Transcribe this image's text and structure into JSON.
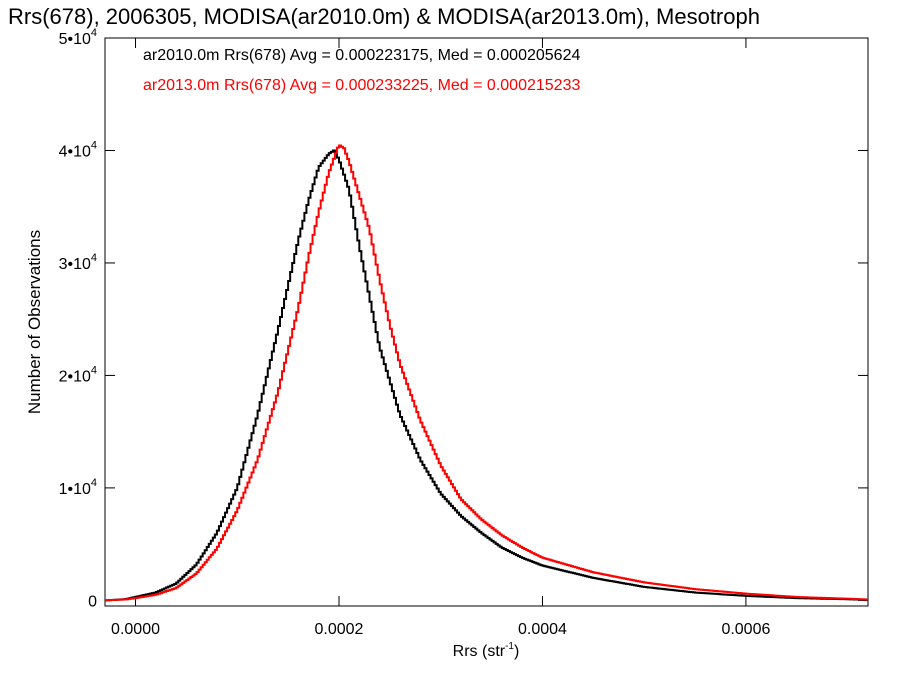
{
  "chart_data": {
    "type": "line",
    "title": "Rrs(678), 2006305, MODISA(ar2010.0m) & MODISA(ar2013.0m), Mesotroph",
    "xlabel": "Rrs (str",
    "xlabel_sup": "-1",
    "xlabel_end": ")",
    "ylabel": "Number of Observations",
    "xlim": [
      -3e-05,
      0.00072
    ],
    "ylim": [
      -500,
      50000
    ],
    "x_ticks": [
      {
        "value": 0.0,
        "label": "0.0000"
      },
      {
        "value": 0.0002,
        "label": "0.0002"
      },
      {
        "value": 0.0004,
        "label": "0.0004"
      },
      {
        "value": 0.0006,
        "label": "0.0006"
      }
    ],
    "y_ticks": [
      {
        "value": 0,
        "mant": "0",
        "exp": ""
      },
      {
        "value": 10000,
        "mant": "1•10",
        "exp": "4"
      },
      {
        "value": 20000,
        "mant": "2•10",
        "exp": "4"
      },
      {
        "value": 30000,
        "mant": "3•10",
        "exp": "4"
      },
      {
        "value": 40000,
        "mant": "4•10",
        "exp": "4"
      },
      {
        "value": 50000,
        "mant": "5•10",
        "exp": "4"
      }
    ],
    "grid": false,
    "legend_position": "top-left",
    "series": [
      {
        "name": "ar2010.0m Rrs(678) Avg = 0.000223175, Med = 0.000205624",
        "color": "#000000",
        "step": "step",
        "x": [
          -3e-05,
          -1e-05,
          0.0,
          2e-05,
          4e-05,
          6e-05,
          8e-05,
          0.0001,
          0.00012,
          0.00014,
          0.00016,
          0.00017,
          0.00018,
          0.00019,
          0.000195,
          0.0002,
          0.00021,
          0.00022,
          0.00023,
          0.00024,
          0.00026,
          0.00028,
          0.0003,
          0.00032,
          0.00034,
          0.00036,
          0.00038,
          0.0004,
          0.00045,
          0.0005,
          0.00055,
          0.0006,
          0.00065,
          0.0007,
          0.00072
        ],
        "y": [
          0,
          100,
          300,
          700,
          1500,
          3200,
          6000,
          10000,
          16500,
          24000,
          32000,
          35500,
          38500,
          39700,
          40000,
          39200,
          36500,
          31500,
          27000,
          22500,
          16500,
          12500,
          9500,
          7500,
          6000,
          4700,
          3800,
          3100,
          2000,
          1200,
          700,
          400,
          200,
          100,
          50
        ]
      },
      {
        "name": "ar2013.0m Rrs(678) Avg = 0.000233225, Med = 0.000215233",
        "color": "#ff0000",
        "step": "step",
        "x": [
          -3e-05,
          -1e-05,
          0.0,
          2e-05,
          4e-05,
          6e-05,
          8e-05,
          0.0001,
          0.00012,
          0.00014,
          0.00016,
          0.00017,
          0.00018,
          0.00019,
          0.0002,
          0.000205,
          0.00021,
          0.00022,
          0.00023,
          0.00024,
          0.00025,
          0.00026,
          0.00028,
          0.0003,
          0.00032,
          0.00034,
          0.00036,
          0.00038,
          0.0004,
          0.00045,
          0.0005,
          0.00055,
          0.0006,
          0.00065,
          0.0007,
          0.00072
        ],
        "y": [
          0,
          80,
          200,
          500,
          1100,
          2400,
          4600,
          8000,
          12500,
          18500,
          26000,
          30500,
          34500,
          38000,
          40500,
          40200,
          39000,
          36000,
          33000,
          28500,
          24500,
          21000,
          16000,
          12000,
          9000,
          7200,
          5800,
          4700,
          3800,
          2500,
          1600,
          1000,
          600,
          300,
          150,
          80
        ]
      }
    ]
  }
}
